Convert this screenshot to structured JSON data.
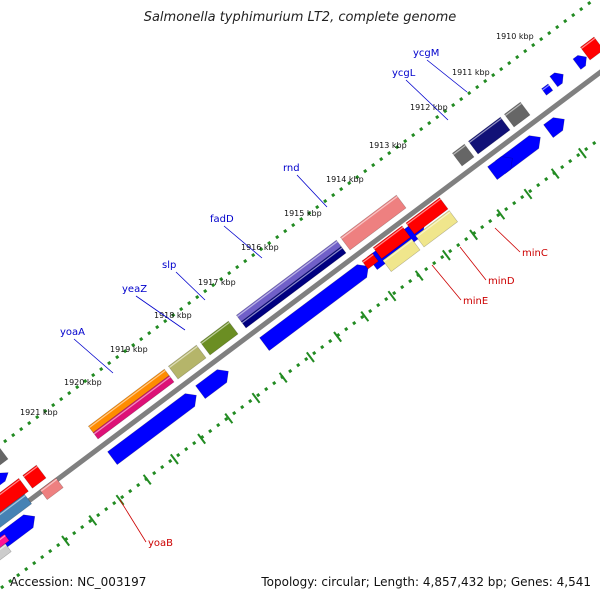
{
  "title": "Salmonella typhimurium LT2, complete genome",
  "footer": {
    "accession": "Accession: NC_003197",
    "topology": "Topology: circular; Length: 4,857,432 bp; Genes: 4,541"
  },
  "colors": {
    "backbone": "#808080",
    "tick": "#228B22",
    "cds": "#0000ff",
    "label_forward": "#0000cc",
    "label_reverse": "#cc0000"
  },
  "ticks": [
    "1910 kbp",
    "1911 kbp",
    "1912 kbp",
    "1913 kbp",
    "1914 kbp",
    "1915 kbp",
    "1916 kbp",
    "1917 kbp",
    "1918 kbp",
    "1919 kbp",
    "1920 kbp",
    "1921 kbp"
  ],
  "genes_forward": [
    "ycgM",
    "ycgL",
    "rnd",
    "fadD",
    "slp",
    "yeaZ",
    "yoaA"
  ],
  "genes_reverse": [
    "minC",
    "minD",
    "minE",
    "yoaB"
  ]
}
